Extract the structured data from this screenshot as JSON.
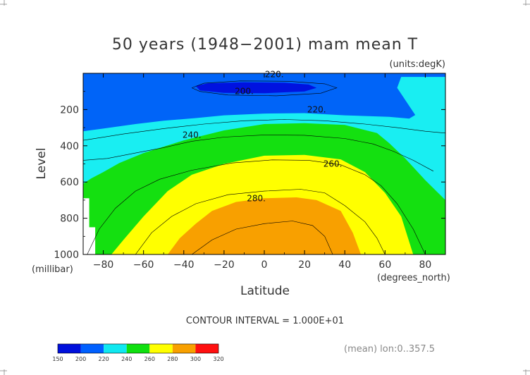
{
  "chart_data": {
    "type": "contour",
    "title": "50 years (1948−2001) mam mean T",
    "units": "(units:degK)",
    "xlabel": "Latitude",
    "xunits": "(degrees_north)",
    "ylabel": "Level",
    "yunits": "(millibar)",
    "xlim": [
      -90,
      90
    ],
    "ylim": [
      1000,
      0
    ],
    "x_ticks": [
      -80,
      -60,
      -40,
      -20,
      0,
      20,
      40,
      60,
      80
    ],
    "y_ticks": [
      200,
      400,
      600,
      800,
      1000
    ],
    "contour_labels": [
      {
        "text": "220.",
        "lat": 5,
        "lev": 5
      },
      {
        "text": "200.",
        "lat": -10,
        "lev": 100
      },
      {
        "text": "220.",
        "lat": 26,
        "lev": 200
      },
      {
        "text": "240.",
        "lat": -36,
        "lev": 340
      },
      {
        "text": "260.",
        "lat": 34,
        "lev": 500
      },
      {
        "text": "280.",
        "lat": -4,
        "lev": 690
      }
    ],
    "contour_interval": "CONTOUR INTERVAL = 1.000E+01",
    "colorbar": {
      "levels": [
        "150",
        "200",
        "220",
        "240",
        "260",
        "280",
        "300",
        "320"
      ],
      "colors": [
        "#0010dc",
        "#0060ff",
        "#10e8f0",
        "#10e010",
        "#ffff00",
        "#f8a000",
        "#ff1010"
      ]
    },
    "subset_note": "(mean) lon:0..357.5",
    "band_colors": {
      "t200": "#0012e0",
      "t220": "#0064f8",
      "t240": "#19eef2",
      "t260": "#14e010",
      "t280": "#ffff00",
      "t300": "#f8a000"
    }
  }
}
